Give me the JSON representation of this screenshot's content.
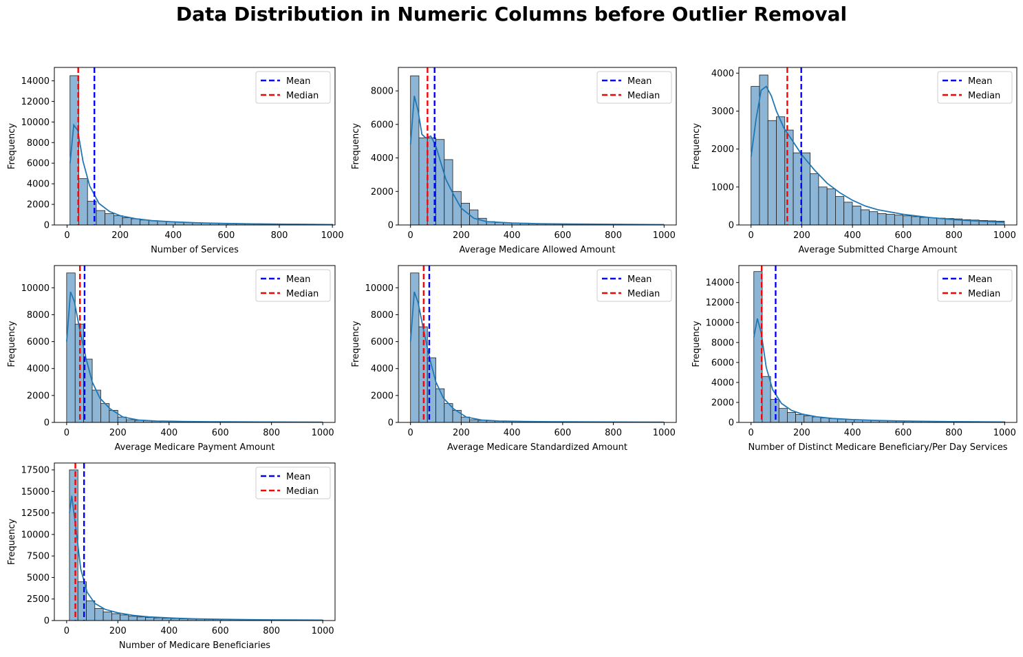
{
  "title": "Data Distribution in Numeric Columns before Outlier Removal",
  "colors": {
    "bar_fill": "#8db6d6",
    "bar_edge": "#1a1a1a",
    "kde": "#1f77b4",
    "mean": "#0000ff",
    "median": "#ff0000"
  },
  "chart_data": [
    {
      "type": "bar",
      "xlabel": "Number of Services",
      "ylabel": "Frequency",
      "xlim": [
        -48,
        1010
      ],
      "ylim": [
        0,
        15300
      ],
      "xticks": [
        0,
        200,
        400,
        600,
        800,
        1000
      ],
      "yticks": [
        0,
        2000,
        4000,
        6000,
        8000,
        10000,
        12000,
        14000
      ],
      "bin_start": 11,
      "bin_width": 33,
      "values": [
        14500,
        4500,
        2300,
        1400,
        1100,
        900,
        700,
        600,
        480,
        420,
        360,
        320,
        280,
        240,
        220,
        200,
        180,
        160,
        150,
        140,
        130,
        120,
        110,
        100,
        95,
        90,
        85,
        80,
        75,
        70
      ],
      "kde": [
        [
          11,
          6000
        ],
        [
          25,
          9700
        ],
        [
          40,
          9200
        ],
        [
          60,
          6200
        ],
        [
          85,
          3800
        ],
        [
          120,
          2100
        ],
        [
          160,
          1300
        ],
        [
          200,
          900
        ],
        [
          260,
          600
        ],
        [
          320,
          420
        ],
        [
          400,
          300
        ],
        [
          500,
          200
        ],
        [
          600,
          150
        ],
        [
          700,
          110
        ],
        [
          800,
          80
        ],
        [
          900,
          60
        ],
        [
          1000,
          40
        ]
      ],
      "mean": 103,
      "median": 42,
      "legend": [
        "Mean",
        "Median"
      ]
    },
    {
      "type": "bar",
      "xlabel": "Average Medicare Allowed Amount",
      "ylabel": "Frequency",
      "xlim": [
        -48,
        1048
      ],
      "ylim": [
        0,
        9400
      ],
      "xticks": [
        0,
        200,
        400,
        600,
        800,
        1000
      ],
      "yticks": [
        0,
        2000,
        4000,
        6000,
        8000
      ],
      "bin_start": 0,
      "bin_width": 33.3,
      "values": [
        8900,
        5200,
        5200,
        5100,
        3900,
        2000,
        1300,
        900,
        400,
        200,
        150,
        120,
        100,
        90,
        80,
        70,
        60,
        55,
        50,
        45,
        40,
        38,
        36,
        34,
        32,
        30,
        28,
        26,
        24,
        22
      ],
      "kde": [
        [
          0,
          4800
        ],
        [
          15,
          7700
        ],
        [
          30,
          6800
        ],
        [
          45,
          5400
        ],
        [
          60,
          5200
        ],
        [
          80,
          5300
        ],
        [
          100,
          4700
        ],
        [
          120,
          3700
        ],
        [
          140,
          2700
        ],
        [
          170,
          1800
        ],
        [
          200,
          1000
        ],
        [
          250,
          400
        ],
        [
          300,
          200
        ],
        [
          400,
          120
        ],
        [
          500,
          80
        ],
        [
          600,
          60
        ],
        [
          700,
          50
        ],
        [
          800,
          40
        ],
        [
          900,
          30
        ],
        [
          1000,
          20
        ]
      ],
      "mean": 95,
      "median": 67,
      "legend": [
        "Mean",
        "Median"
      ]
    },
    {
      "type": "bar",
      "xlabel": "Average Submitted Charge Amount",
      "ylabel": "Frequency",
      "xlim": [
        -48,
        1048
      ],
      "ylim": [
        0,
        4150
      ],
      "xticks": [
        0,
        200,
        400,
        600,
        800,
        1000
      ],
      "yticks": [
        0,
        1000,
        2000,
        3000,
        4000
      ],
      "bin_start": 0,
      "bin_width": 33.3,
      "values": [
        3650,
        3950,
        2750,
        2850,
        2500,
        1900,
        1900,
        1350,
        1000,
        950,
        750,
        600,
        500,
        400,
        350,
        300,
        280,
        260,
        240,
        220,
        200,
        190,
        180,
        170,
        160,
        140,
        130,
        120,
        110,
        100
      ],
      "kde": [
        [
          0,
          1800
        ],
        [
          20,
          2800
        ],
        [
          40,
          3550
        ],
        [
          60,
          3650
        ],
        [
          80,
          3400
        ],
        [
          100,
          3000
        ],
        [
          130,
          2550
        ],
        [
          160,
          2250
        ],
        [
          200,
          1850
        ],
        [
          250,
          1450
        ],
        [
          300,
          1100
        ],
        [
          350,
          850
        ],
        [
          400,
          650
        ],
        [
          450,
          500
        ],
        [
          500,
          400
        ],
        [
          600,
          280
        ],
        [
          700,
          200
        ],
        [
          800,
          140
        ],
        [
          900,
          100
        ],
        [
          1000,
          70
        ]
      ],
      "mean": 198,
      "median": 143,
      "legend": [
        "Mean",
        "Median"
      ]
    },
    {
      "type": "bar",
      "xlabel": "Average Medicare Payment Amount",
      "ylabel": "Frequency",
      "xlim": [
        -48,
        1048
      ],
      "ylim": [
        0,
        11650
      ],
      "xticks": [
        0,
        200,
        400,
        600,
        800,
        1000
      ],
      "yticks": [
        0,
        2000,
        4000,
        6000,
        8000,
        10000
      ],
      "bin_start": 0,
      "bin_width": 33.3,
      "values": [
        11100,
        7300,
        4700,
        2400,
        1400,
        900,
        400,
        200,
        150,
        120,
        100,
        90,
        80,
        70,
        60,
        55,
        50,
        45,
        40,
        38,
        36,
        34,
        32,
        30,
        28,
        26,
        24,
        22,
        20,
        18
      ],
      "kde": [
        [
          0,
          6000
        ],
        [
          15,
          9700
        ],
        [
          30,
          9000
        ],
        [
          50,
          7000
        ],
        [
          75,
          4800
        ],
        [
          100,
          3000
        ],
        [
          130,
          1800
        ],
        [
          170,
          1000
        ],
        [
          220,
          400
        ],
        [
          280,
          180
        ],
        [
          350,
          100
        ],
        [
          450,
          70
        ],
        [
          550,
          50
        ],
        [
          650,
          40
        ],
        [
          800,
          30
        ],
        [
          1000,
          20
        ]
      ],
      "mean": 70,
      "median": 52,
      "legend": [
        "Mean",
        "Median"
      ]
    },
    {
      "type": "bar",
      "xlabel": "Average Medicare Standardized Amount",
      "ylabel": "Frequency",
      "xlim": [
        -48,
        1048
      ],
      "ylim": [
        0,
        11650
      ],
      "xticks": [
        0,
        200,
        400,
        600,
        800,
        1000
      ],
      "yticks": [
        0,
        2000,
        4000,
        6000,
        8000,
        10000
      ],
      "bin_start": 0,
      "bin_width": 33.3,
      "values": [
        11100,
        7100,
        4800,
        2500,
        1400,
        900,
        400,
        200,
        150,
        120,
        100,
        90,
        80,
        70,
        60,
        55,
        50,
        45,
        40,
        38,
        36,
        34,
        32,
        30,
        28,
        26,
        24,
        22,
        20,
        18
      ],
      "kde": [
        [
          0,
          6000
        ],
        [
          15,
          9700
        ],
        [
          30,
          8900
        ],
        [
          50,
          7000
        ],
        [
          75,
          4800
        ],
        [
          100,
          3000
        ],
        [
          130,
          1800
        ],
        [
          170,
          1000
        ],
        [
          220,
          400
        ],
        [
          280,
          180
        ],
        [
          350,
          100
        ],
        [
          450,
          70
        ],
        [
          550,
          50
        ],
        [
          650,
          40
        ],
        [
          800,
          30
        ],
        [
          1000,
          20
        ]
      ],
      "mean": 74,
      "median": 52,
      "legend": [
        "Mean",
        "Median"
      ]
    },
    {
      "type": "bar",
      "xlabel": "Number of Distinct Medicare Beneficiary/Per Day Services",
      "ylabel": "Frequency",
      "xlim": [
        -48,
        1048
      ],
      "ylim": [
        0,
        15700
      ],
      "xticks": [
        0,
        200,
        400,
        600,
        800,
        1000
      ],
      "yticks": [
        0,
        2000,
        4000,
        6000,
        8000,
        10000,
        12000,
        14000
      ],
      "bin_start": 11,
      "bin_width": 33,
      "values": [
        15100,
        4600,
        2300,
        1400,
        1000,
        800,
        650,
        550,
        450,
        380,
        330,
        290,
        260,
        230,
        200,
        180,
        160,
        150,
        140,
        130,
        120,
        110,
        100,
        95,
        90,
        85,
        80,
        75,
        70,
        65
      ],
      "kde": [
        [
          11,
          8500
        ],
        [
          25,
          10400
        ],
        [
          40,
          9000
        ],
        [
          60,
          5500
        ],
        [
          85,
          3300
        ],
        [
          120,
          1900
        ],
        [
          160,
          1200
        ],
        [
          200,
          850
        ],
        [
          260,
          560
        ],
        [
          320,
          400
        ],
        [
          400,
          280
        ],
        [
          500,
          190
        ],
        [
          600,
          140
        ],
        [
          700,
          100
        ],
        [
          800,
          75
        ],
        [
          900,
          55
        ],
        [
          1000,
          40
        ]
      ],
      "mean": 97,
      "median": 42,
      "legend": [
        "Mean",
        "Median"
      ]
    },
    {
      "type": "bar",
      "xlabel": "Number of Medicare Beneficiaries",
      "ylabel": "Frequency",
      "xlim": [
        -48,
        1048
      ],
      "ylim": [
        0,
        18300
      ],
      "xticks": [
        0,
        200,
        400,
        600,
        800,
        1000
      ],
      "yticks": [
        0,
        2500,
        5000,
        7500,
        10000,
        12500,
        15000,
        17500
      ],
      "bin_start": 11,
      "bin_width": 33,
      "values": [
        17500,
        4500,
        2300,
        1400,
        1000,
        800,
        650,
        500,
        420,
        350,
        300,
        260,
        230,
        200,
        180,
        160,
        140,
        130,
        120,
        110,
        100,
        95,
        90,
        85,
        80,
        75,
        70,
        65,
        60,
        55
      ],
      "kde": [
        [
          11,
          12500
        ],
        [
          20,
          14500
        ],
        [
          35,
          11000
        ],
        [
          55,
          6000
        ],
        [
          80,
          3300
        ],
        [
          110,
          2000
        ],
        [
          150,
          1300
        ],
        [
          200,
          900
        ],
        [
          260,
          600
        ],
        [
          320,
          420
        ],
        [
          400,
          300
        ],
        [
          500,
          200
        ],
        [
          600,
          150
        ],
        [
          700,
          110
        ],
        [
          800,
          80
        ],
        [
          900,
          60
        ],
        [
          1000,
          45
        ]
      ],
      "mean": 68,
      "median": 34,
      "legend": [
        "Mean",
        "Median"
      ]
    }
  ]
}
